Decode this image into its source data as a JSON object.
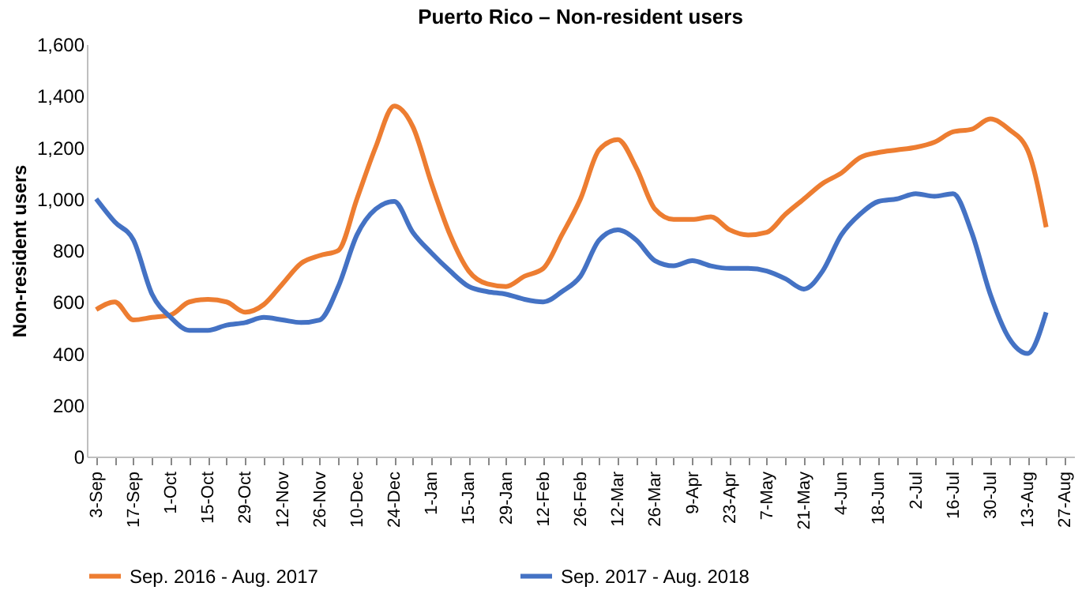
{
  "chart_data": {
    "type": "line",
    "title": "Puerto Rico – Non-resident users",
    "ylabel": "Non-resident users",
    "categories": [
      "3-Sep",
      null,
      "17-Sep",
      null,
      "1-Oct",
      null,
      "15-Oct",
      null,
      "29-Oct",
      null,
      "12-Nov",
      null,
      "26-Nov",
      null,
      "10-Dec",
      null,
      "24-Dec",
      null,
      "1-Jan",
      null,
      "15-Jan",
      null,
      "29-Jan",
      null,
      "12-Feb",
      null,
      "26-Feb",
      null,
      "12-Mar",
      null,
      "26-Mar",
      null,
      "9-Apr",
      null,
      "23-Apr",
      null,
      "7-May",
      null,
      "21-May",
      null,
      "4-Jun",
      null,
      "18-Jun",
      null,
      "2-Jul",
      null,
      "16-Jul",
      null,
      "30-Jul",
      null,
      "13-Aug",
      null,
      "27-Aug"
    ],
    "series": [
      {
        "name": "Sep. 2016 - Aug. 2017",
        "color": "#ed7d31",
        "values": [
          570,
          600,
          530,
          540,
          550,
          600,
          610,
          600,
          560,
          590,
          670,
          750,
          780,
          800,
          1000,
          1200,
          1360,
          1280,
          1060,
          860,
          720,
          670,
          660,
          700,
          730,
          860,
          1000,
          1190,
          1230,
          1120,
          960,
          920,
          920,
          930,
          880,
          860,
          870,
          940,
          1000,
          1060,
          1100,
          1160,
          1180,
          1190,
          1200,
          1220,
          1260,
          1270,
          1310,
          1270,
          1190,
          890,
          null
        ]
      },
      {
        "name": "Sep. 2017 - Aug. 2018",
        "color": "#4472c4",
        "values": [
          1000,
          910,
          840,
          630,
          540,
          490,
          490,
          510,
          520,
          540,
          530,
          520,
          530,
          660,
          860,
          960,
          990,
          870,
          790,
          720,
          660,
          640,
          630,
          610,
          600,
          640,
          700,
          840,
          880,
          840,
          760,
          740,
          760,
          740,
          730,
          730,
          720,
          690,
          650,
          720,
          860,
          940,
          990,
          1000,
          1020,
          1010,
          1020,
          870,
          630,
          460,
          400,
          560,
          null
        ]
      }
    ],
    "ylim": [
      0,
      1600
    ],
    "yticks": [
      0,
      200,
      400,
      600,
      800,
      {
        "value": 1000,
        "label": "1,000"
      },
      {
        "value": 1200,
        "label": "1,200"
      },
      {
        "value": 1400,
        "label": "1,400"
      },
      {
        "value": 1600,
        "label": "1,600"
      }
    ],
    "legend": "bottom",
    "line_style": "solid",
    "marker": "none"
  }
}
